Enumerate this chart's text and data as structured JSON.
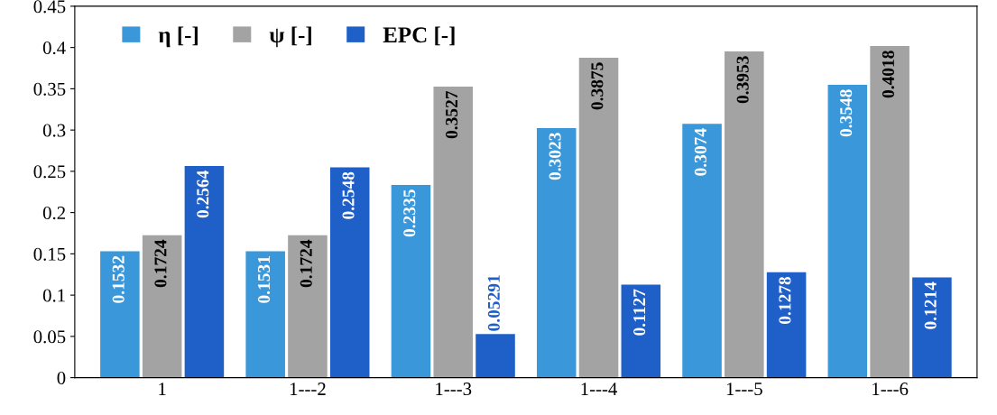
{
  "chart_data": {
    "type": "bar",
    "categories": [
      "1",
      "1---2",
      "1---3",
      "1---4",
      "1---5",
      "1---6"
    ],
    "series": [
      {
        "name": "η [-]",
        "color": "#3a98da",
        "values": [
          0.1532,
          0.1531,
          0.2335,
          0.3023,
          0.3074,
          0.3548
        ]
      },
      {
        "name": "ψ [-]",
        "color": "#a3a3a3",
        "values": [
          0.1724,
          0.1724,
          0.3527,
          0.3875,
          0.3953,
          0.4018
        ]
      },
      {
        "name": "EPC [-]",
        "color": "#1f5fc8",
        "values": [
          0.2564,
          0.2548,
          0.05291,
          0.1127,
          0.1278,
          0.1214
        ]
      }
    ],
    "ylim": [
      0,
      0.45
    ],
    "yticks": [
      0,
      0.05,
      0.1,
      0.15,
      0.2,
      0.25,
      0.3,
      0.35,
      0.4,
      0.45
    ],
    "grid": false,
    "legend": "top left",
    "data_labels": true
  }
}
